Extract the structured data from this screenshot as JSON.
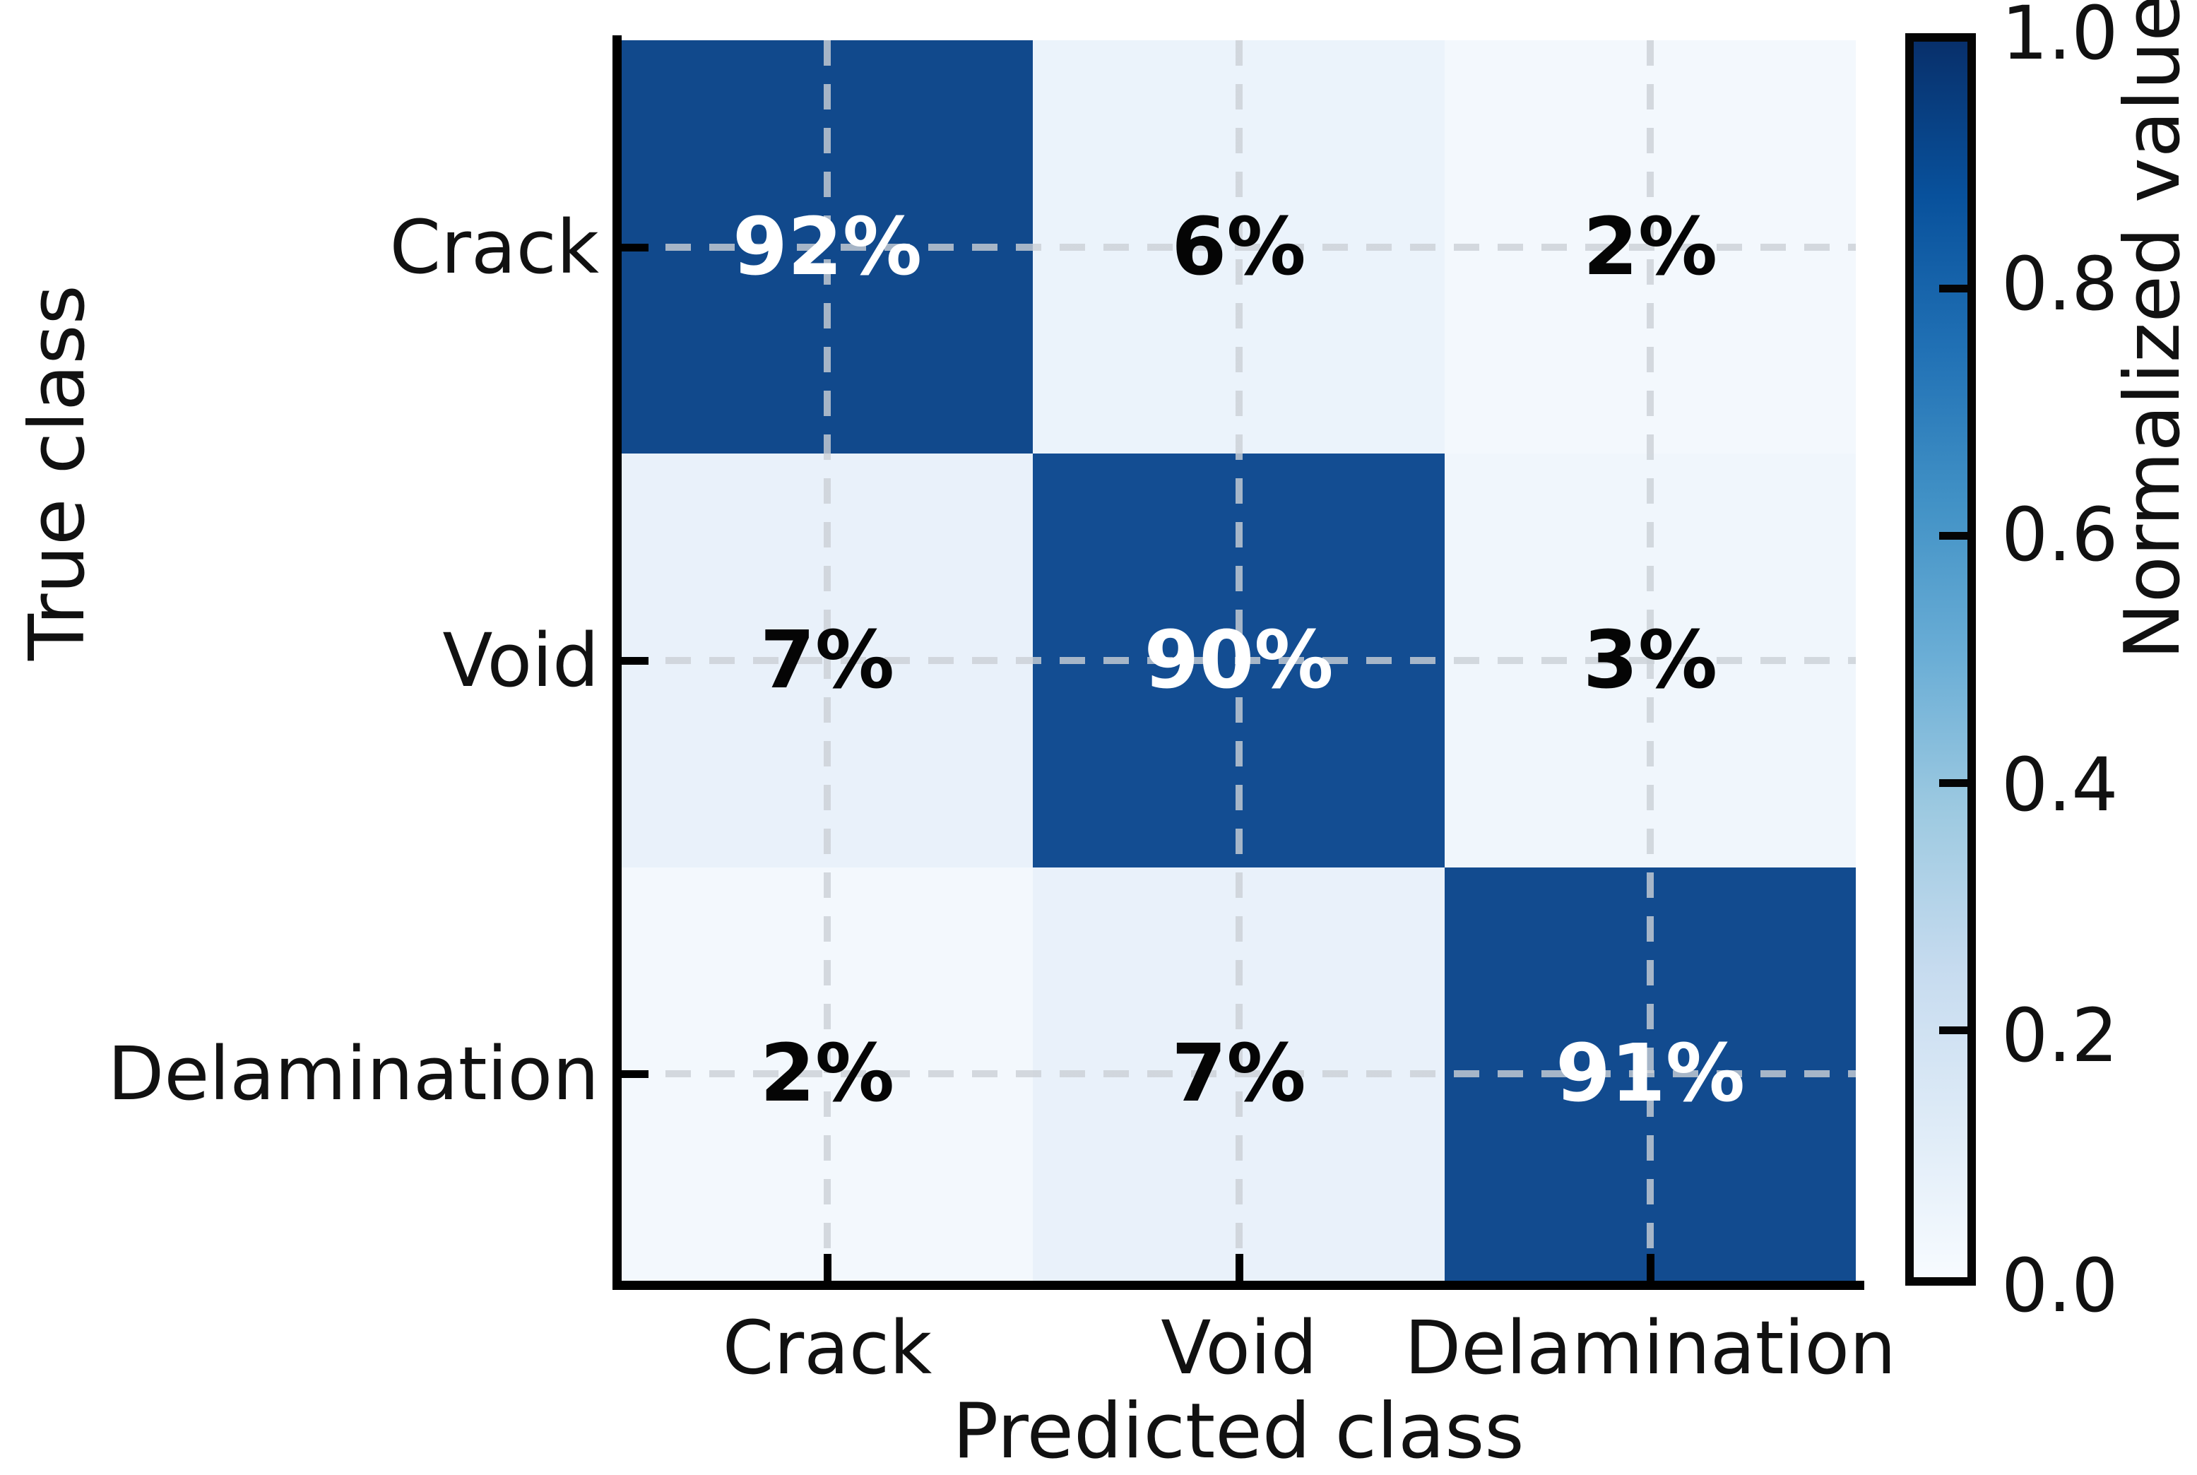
{
  "chart_data": {
    "type": "heatmap",
    "subtype": "confusion-matrix",
    "xlabel": "Predicted class",
    "ylabel": "True class",
    "x_categories": [
      "Crack",
      "Void",
      "Delamination"
    ],
    "y_categories": [
      "Crack",
      "Void",
      "Delamination"
    ],
    "matrix_percent": [
      [
        92,
        6,
        2
      ],
      [
        7,
        90,
        3
      ],
      [
        2,
        7,
        91
      ]
    ],
    "cells": [
      {
        "true_class": "Crack",
        "predicted_class": "Crack",
        "label": "92%",
        "value": 0.92,
        "bg": "#11498c",
        "fg": "#ffffff"
      },
      {
        "true_class": "Crack",
        "predicted_class": "Void",
        "label": "6%",
        "value": 0.06,
        "bg": "#ebf3fb",
        "fg": "#050505"
      },
      {
        "true_class": "Crack",
        "predicted_class": "Delamination",
        "label": "2%",
        "value": 0.02,
        "bg": "#f3f8fd",
        "fg": "#050505"
      },
      {
        "true_class": "Void",
        "predicted_class": "Crack",
        "label": "7%",
        "value": 0.07,
        "bg": "#e9f1fa",
        "fg": "#050505"
      },
      {
        "true_class": "Void",
        "predicted_class": "Void",
        "label": "90%",
        "value": 0.9,
        "bg": "#134d92",
        "fg": "#ffffff"
      },
      {
        "true_class": "Void",
        "predicted_class": "Delamination",
        "label": "3%",
        "value": 0.03,
        "bg": "#f0f6fc",
        "fg": "#050505"
      },
      {
        "true_class": "Delamination",
        "predicted_class": "Crack",
        "label": "2%",
        "value": 0.02,
        "bg": "#f3f8fd",
        "fg": "#050505"
      },
      {
        "true_class": "Delamination",
        "predicted_class": "Void",
        "label": "7%",
        "value": 0.07,
        "bg": "#e9f1fa",
        "fg": "#050505"
      },
      {
        "true_class": "Delamination",
        "predicted_class": "Delamination",
        "label": "91%",
        "value": 0.91,
        "bg": "#124b8f",
        "fg": "#ffffff"
      }
    ],
    "colorbar": {
      "label": "Normalized value",
      "tick_labels": [
        "1.0",
        "0.8",
        "0.6",
        "0.4",
        "0.2",
        "0.0"
      ],
      "tick_values": [
        1.0,
        0.8,
        0.6,
        0.4,
        0.2,
        0.0
      ],
      "range": [
        0.0,
        1.0
      ],
      "colormap": "Blues",
      "gradient_stops": [
        "#f7fbff",
        "#deebf7",
        "#c6dbef",
        "#9ecae1",
        "#6baed6",
        "#4292c6",
        "#2171b5",
        "#08519c",
        "#08306b"
      ]
    },
    "grid": {
      "visible": true,
      "style": "dashed",
      "color": "#cbd0d6"
    },
    "legend_position": "colorbar-right"
  },
  "colors": {
    "background": "#ffffff",
    "spine": "#000000",
    "text": "#111111",
    "diagonal_dark_blue": "#11498c",
    "offdiagonal_light_blue": "#ebf3fb"
  }
}
